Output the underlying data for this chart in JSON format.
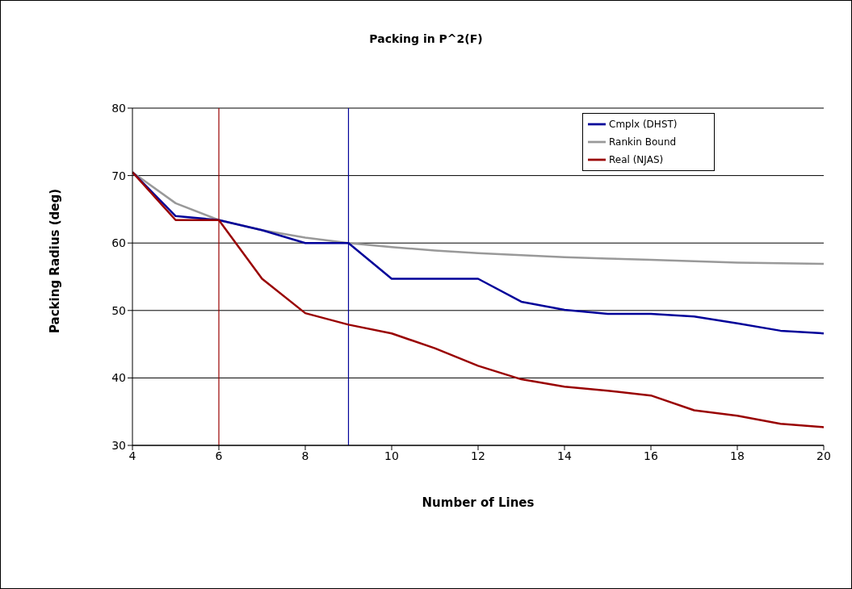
{
  "chart_data": {
    "type": "line",
    "title": "Packing in P^2(F)",
    "xlabel": "Number of Lines",
    "ylabel": "Packing Radius (deg)",
    "x": [
      4,
      5,
      6,
      7,
      8,
      9,
      10,
      11,
      12,
      13,
      14,
      15,
      16,
      17,
      18,
      19,
      20
    ],
    "series": [
      {
        "name": "Rankin Bound",
        "color": "#999999",
        "values": [
          70.5,
          65.9,
          63.4,
          61.9,
          60.8,
          60.0,
          59.4,
          58.9,
          58.5,
          58.2,
          57.9,
          57.7,
          57.5,
          57.3,
          57.1,
          57.0,
          56.9
        ]
      },
      {
        "name": "Cmplx (DHST)",
        "color": "#000099",
        "values": [
          70.5,
          64.0,
          63.4,
          61.9,
          60.0,
          60.0,
          54.7,
          54.7,
          54.7,
          51.3,
          50.1,
          49.5,
          49.5,
          49.1,
          48.1,
          47.0,
          46.6
        ]
      },
      {
        "name": "Real (NJAS)",
        "color": "#990000",
        "values": [
          70.5,
          63.4,
          63.4,
          54.7,
          49.6,
          47.9,
          46.6,
          44.4,
          41.8,
          39.8,
          38.7,
          38.1,
          37.4,
          35.2,
          34.4,
          33.2,
          32.7
        ]
      }
    ],
    "xlim": [
      4,
      20
    ],
    "xticks": [
      4,
      6,
      8,
      10,
      12,
      14,
      16,
      18,
      20
    ],
    "ylim": [
      30,
      80
    ],
    "yticks": [
      30,
      40,
      50,
      60,
      70,
      80
    ],
    "ref_lines": [
      {
        "axis": "x",
        "value": 6,
        "color": "#990000"
      },
      {
        "axis": "x",
        "value": 9,
        "color": "#000099"
      }
    ],
    "grid": "y",
    "legend": "top right",
    "line_style": "solid"
  }
}
